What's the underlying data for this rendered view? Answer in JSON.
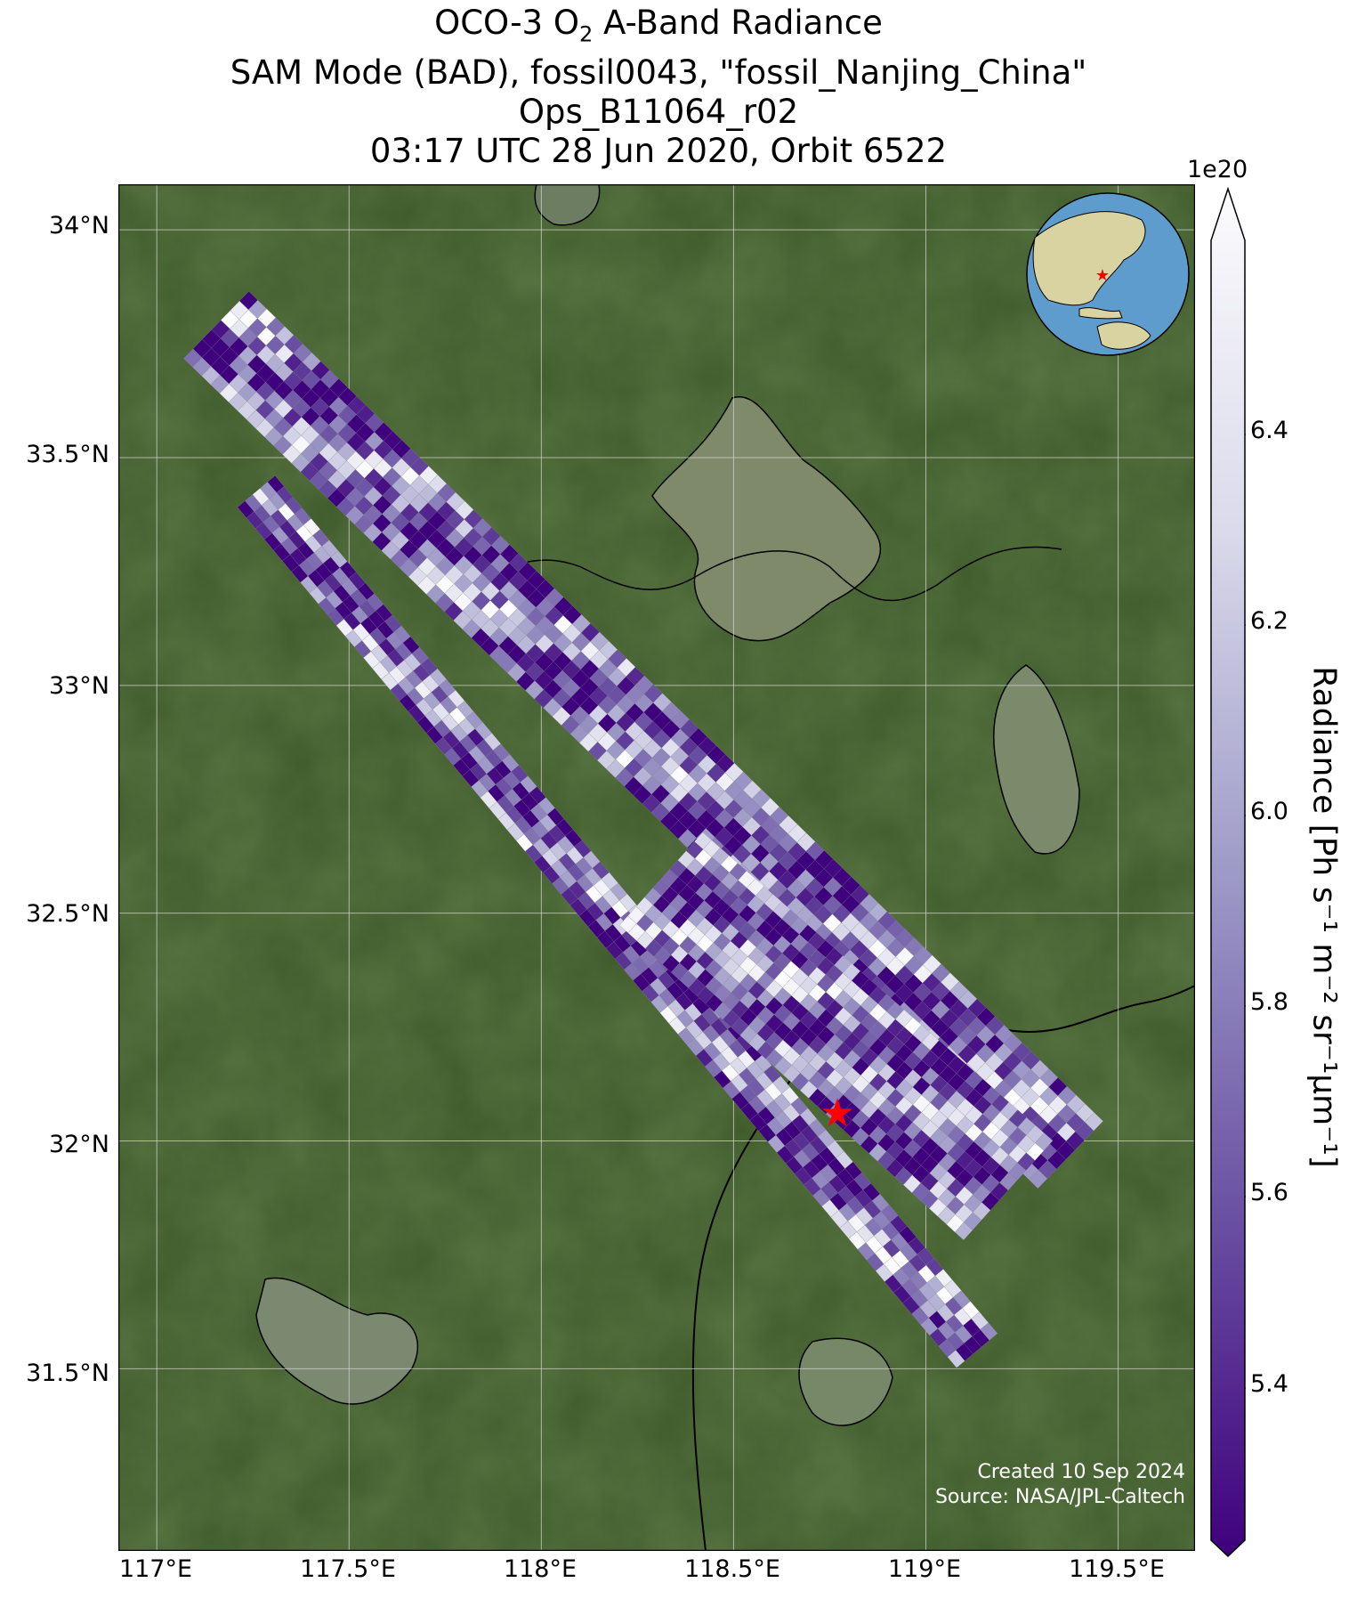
{
  "title": {
    "line1_prefix": "OCO-3 O",
    "line1_sub": "2",
    "line1_suffix": " A-Band Radiance",
    "line2": "SAM Mode (BAD), fossil0043, \"fossil_Nanjing_China\"",
    "line3": "Ops_B11064_r02",
    "line4": "03:17 UTC 28 Jun 2020, Orbit 6522"
  },
  "map": {
    "lat_ticks": [
      "34°N",
      "33.5°N",
      "33°N",
      "32.5°N",
      "32°N",
      "31.5°N"
    ],
    "lon_ticks": [
      "117°E",
      "117.5°E",
      "118°E",
      "118.5°E",
      "119°E",
      "119.5°E"
    ],
    "lat_range": [
      31.1,
      34.1
    ],
    "lon_range": [
      116.9,
      119.7
    ],
    "target_marker": {
      "lon": 118.77,
      "lat": 32.06,
      "color": "#ff0000"
    },
    "colors": {
      "land": "#3f5a2a",
      "water": "#7a8a6c",
      "gridline": "#d9d9d9",
      "coastline": "#000000"
    }
  },
  "colorbar": {
    "ticks": [
      "6.4",
      "6.2",
      "6.0",
      "5.8",
      "5.6",
      "5.4"
    ],
    "exponent": "1e20",
    "label": "Radiance [Ph s⁻¹ m⁻² sr⁻¹μm⁻¹]",
    "range": [
      5.25,
      6.55
    ],
    "colormap": [
      "#3f007d",
      "#6a51a3",
      "#9e9ac8",
      "#dadaeb",
      "#fcfbfd"
    ]
  },
  "credits": {
    "created": "Created 10 Sep 2024",
    "source": "Source: NASA/JPL-Caltech"
  }
}
